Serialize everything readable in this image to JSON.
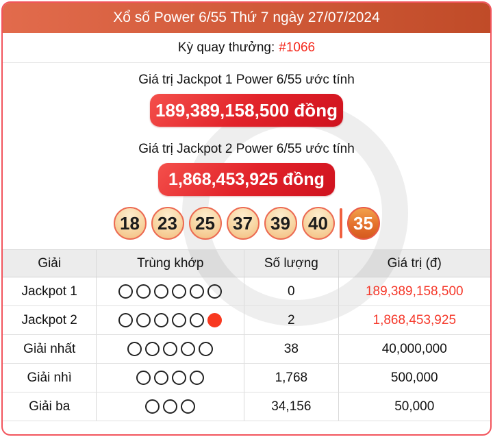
{
  "header": {
    "title": "Xổ số Power 6/55 Thứ 7 ngày 27/07/2024"
  },
  "draw": {
    "label": "Kỳ quay thưởng:",
    "number": "#1066"
  },
  "jackpots": [
    {
      "label": "Giá trị Jackpot 1 Power 6/55 ước tính",
      "amount": "189,389,158,500 đồng"
    },
    {
      "label": "Giá trị Jackpot 2 Power 6/55 ước tính",
      "amount": "1,868,453,925 đồng"
    }
  ],
  "results": {
    "main_numbers": [
      "18",
      "23",
      "25",
      "37",
      "39",
      "40"
    ],
    "special_number": "35"
  },
  "table": {
    "headers": [
      "Giải",
      "Trùng khớp",
      "Số lượng",
      "Giá trị (đ)"
    ],
    "rows": [
      {
        "prize": "Jackpot 1",
        "match_white": 6,
        "match_special": false,
        "count": "0",
        "value": "189,389,158,500",
        "value_color": "red"
      },
      {
        "prize": "Jackpot 2",
        "match_white": 5,
        "match_special": true,
        "count": "2",
        "value": "1,868,453,925",
        "value_color": "red"
      },
      {
        "prize": "Giải nhất",
        "match_white": 5,
        "match_special": false,
        "count": "38",
        "value": "40,000,000",
        "value_color": "black"
      },
      {
        "prize": "Giải nhì",
        "match_white": 4,
        "match_special": false,
        "count": "1,768",
        "value": "500,000",
        "value_color": "black"
      },
      {
        "prize": "Giải ba",
        "match_white": 3,
        "match_special": false,
        "count": "34,156",
        "value": "50,000",
        "value_color": "black"
      }
    ]
  },
  "colors": {
    "card_border": "#f2545c",
    "header_gradient_left": "#e26b4c",
    "header_gradient_right": "#c04b28",
    "button_red": "#e2232a",
    "value_red": "#f5382a",
    "ball_border": "#ec6a52",
    "special_ball": "#d55a1e",
    "match_filled_red": "#f83920"
  }
}
